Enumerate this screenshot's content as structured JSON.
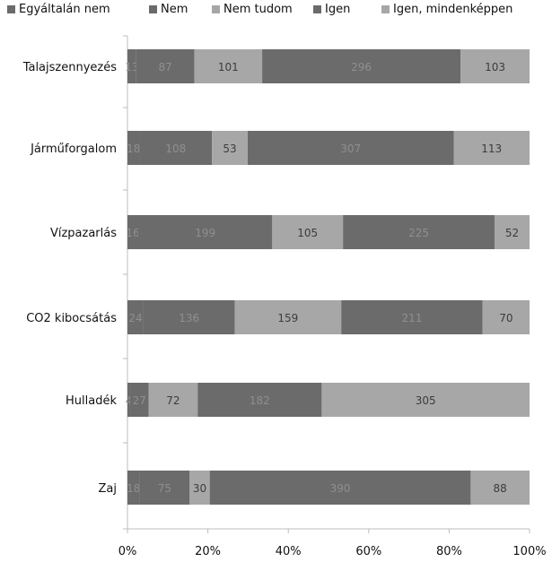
{
  "chart_data": {
    "type": "bar",
    "orientation": "horizontal",
    "stacked": "percent",
    "categories": [
      "Talajszennyezés",
      "Járműforgalom",
      "Vízpazarlás",
      "CO2 kibocsátás",
      "Hulladék",
      "Zaj"
    ],
    "series": [
      {
        "name": "Egyáltalán nem",
        "color": "#6b6b6b",
        "values": [
          13,
          18,
          16,
          24,
          4,
          18
        ]
      },
      {
        "name": "Nem",
        "color": "#6b6b6b",
        "values": [
          87,
          108,
          199,
          136,
          27,
          75
        ]
      },
      {
        "name": "Nem tudom",
        "color": "#a7a7a7",
        "values": [
          101,
          53,
          105,
          159,
          72,
          30
        ]
      },
      {
        "name": "Igen",
        "color": "#6b6b6b",
        "values": [
          296,
          307,
          225,
          211,
          182,
          390
        ]
      },
      {
        "name": "Igen, mindenképpen",
        "color": "#a7a7a7",
        "values": [
          103,
          113,
          52,
          70,
          305,
          88
        ]
      }
    ],
    "x_ticks": [
      "0%",
      "20%",
      "40%",
      "60%",
      "80%",
      "100%"
    ],
    "xlim": [
      0,
      100
    ],
    "grid": true,
    "legend_position": "top"
  }
}
